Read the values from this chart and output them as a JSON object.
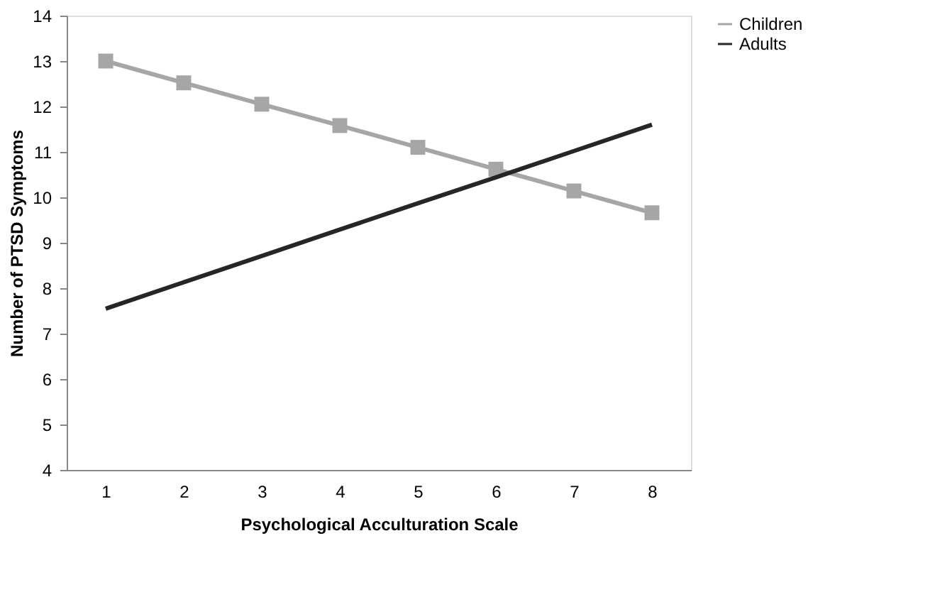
{
  "chart_data": {
    "type": "line",
    "xlabel": "Psychological Acculturation Scale",
    "ylabel": "Number of PTSD Symptoms",
    "categories": [
      "1",
      "2",
      "3",
      "4",
      "5",
      "6",
      "7",
      "8"
    ],
    "series": [
      {
        "name": "Children",
        "color": "#a6a6a6",
        "marker": "square",
        "values": [
          13.0,
          12.52,
          12.05,
          11.58,
          11.1,
          10.62,
          10.14,
          9.66
        ]
      },
      {
        "name": "Adults",
        "color": "#262626",
        "marker": "none",
        "values": [
          7.55,
          8.13,
          8.71,
          9.29,
          9.87,
          10.44,
          11.02,
          11.6
        ]
      }
    ],
    "ylim": [
      4,
      14
    ],
    "yticks": [
      4,
      5,
      6,
      7,
      8,
      9,
      10,
      11,
      12,
      13,
      14
    ],
    "grid": false,
    "legend": "right"
  }
}
